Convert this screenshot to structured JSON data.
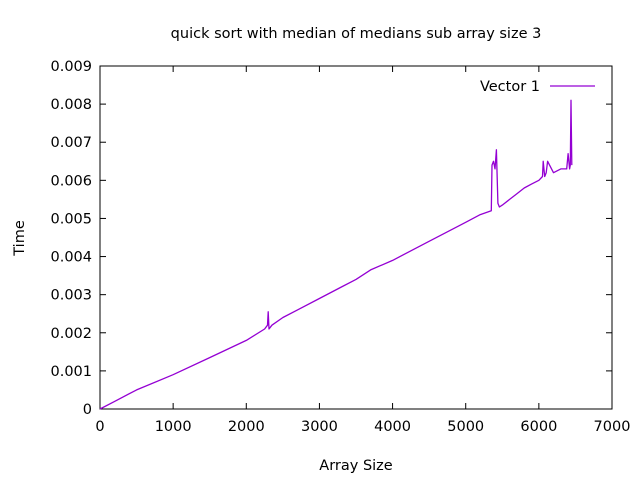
{
  "chart_data": {
    "type": "line",
    "title": "quick sort with median of medians sub array size 3",
    "xlabel": "Array Size",
    "ylabel": "Time",
    "xlim": [
      0,
      7000
    ],
    "ylim": [
      0,
      0.009
    ],
    "x_ticks": [
      0,
      1000,
      2000,
      3000,
      4000,
      5000,
      6000,
      7000
    ],
    "x_tick_labels": [
      "0",
      "1000",
      "2000",
      "3000",
      "4000",
      "5000",
      "6000",
      "7000"
    ],
    "y_ticks": [
      0,
      0.001,
      0.002,
      0.003,
      0.004,
      0.005,
      0.006,
      0.007,
      0.008,
      0.009
    ],
    "y_tick_labels": [
      "0",
      "0.001",
      "0.002",
      "0.003",
      "0.004",
      "0.005",
      "0.006",
      "0.007",
      "0.008",
      "0.009"
    ],
    "grid": false,
    "legend_position": "top-right",
    "series": [
      {
        "name": "Vector 1",
        "color": "#9400d3",
        "x": [
          0,
          200,
          500,
          1000,
          1500,
          2000,
          2250,
          2290,
          2300,
          2310,
          2350,
          2500,
          2700,
          3000,
          3300,
          3500,
          3700,
          4000,
          4300,
          4500,
          4700,
          5000,
          5200,
          5350,
          5360,
          5380,
          5400,
          5420,
          5440,
          5460,
          5500,
          5600,
          5700,
          5800,
          5900,
          6000,
          6050,
          6060,
          6080,
          6100,
          6120,
          6200,
          6300,
          6380,
          6400,
          6420,
          6430,
          6440,
          6450
        ],
        "y": [
          0,
          0.0002,
          0.0005,
          0.0009,
          0.00135,
          0.0018,
          0.0021,
          0.0022,
          0.00255,
          0.0021,
          0.0022,
          0.0024,
          0.0026,
          0.0029,
          0.0032,
          0.0034,
          0.00365,
          0.0039,
          0.0042,
          0.0044,
          0.0046,
          0.0049,
          0.0051,
          0.0052,
          0.0064,
          0.0065,
          0.0063,
          0.0068,
          0.0054,
          0.0053,
          0.00535,
          0.0055,
          0.00565,
          0.0058,
          0.0059,
          0.006,
          0.0061,
          0.0065,
          0.0061,
          0.0062,
          0.0065,
          0.0062,
          0.0063,
          0.0063,
          0.0067,
          0.0063,
          0.0064,
          0.0081,
          0.0064
        ]
      }
    ]
  }
}
